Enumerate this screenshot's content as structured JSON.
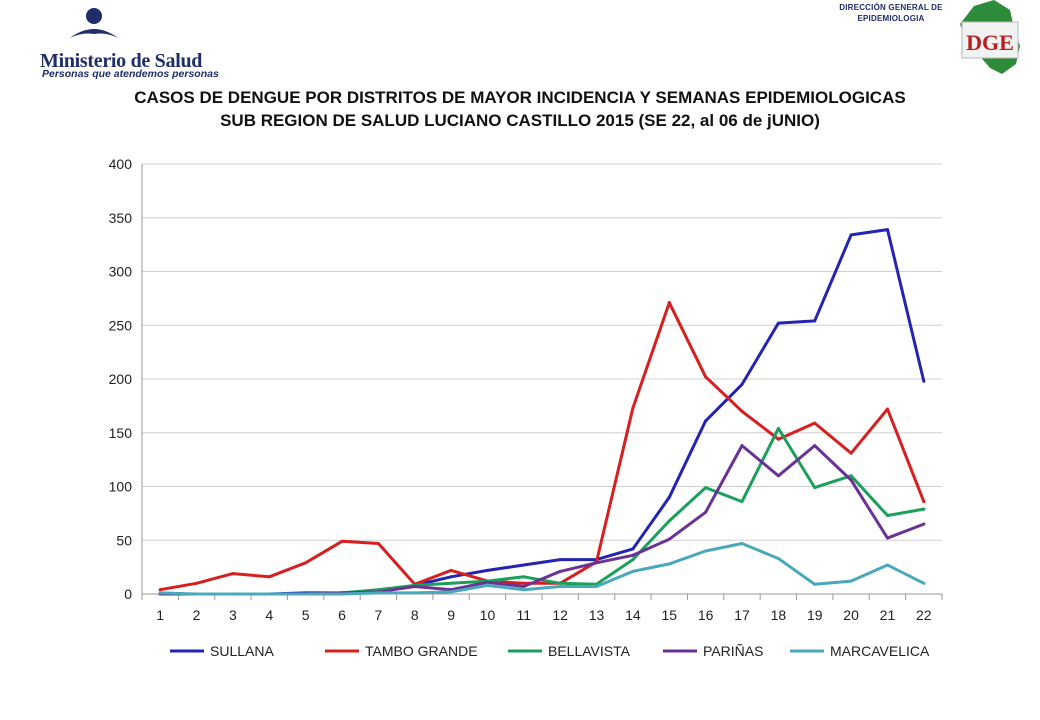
{
  "header": {
    "ministry_name": "Ministerio de Salud",
    "ministry_tagline": "Personas que atendemos personas",
    "dge_line1": "DIRECCIÓN GENERAL DE",
    "dge_line2": "EPIDEMIOLOGIA",
    "dge_logo_letters": "DGE"
  },
  "title_line1": "CASOS DE DENGUE POR DISTRITOS DE MAYOR INCIDENCIA Y SEMANAS EPIDEMIOLOGICAS",
  "title_line2": "SUB REGION DE SALUD LUCIANO CASTILLO 2015 (SE 22, al 06 de jUNIO)",
  "chart_data": {
    "type": "line",
    "x": [
      1,
      2,
      3,
      4,
      5,
      6,
      7,
      8,
      9,
      10,
      11,
      12,
      13,
      14,
      15,
      16,
      17,
      18,
      19,
      20,
      21,
      22
    ],
    "ylim": [
      0,
      400
    ],
    "yticks": [
      0,
      50,
      100,
      150,
      200,
      250,
      300,
      350,
      400
    ],
    "grid": true,
    "legend_position": "bottom",
    "series": [
      {
        "name": "SULLANA",
        "color": "#2424b4",
        "values": [
          0,
          0,
          0,
          0,
          1,
          1,
          2,
          8,
          16,
          22,
          27,
          32,
          32,
          42,
          90,
          161,
          195,
          252,
          254,
          334,
          339,
          198
        ]
      },
      {
        "name": "TAMBO GRANDE",
        "color": "#d81e1e",
        "values": [
          4,
          10,
          19,
          16,
          29,
          49,
          47,
          9,
          22,
          12,
          10,
          10,
          30,
          173,
          271,
          202,
          170,
          144,
          159,
          131,
          172,
          86
        ]
      },
      {
        "name": "BELLAVISTA",
        "color": "#1aa05a",
        "values": [
          0,
          0,
          0,
          0,
          0,
          1,
          4,
          8,
          10,
          12,
          16,
          10,
          9,
          32,
          68,
          99,
          86,
          154,
          99,
          110,
          73,
          79
        ]
      },
      {
        "name": "PARIÑAS",
        "color": "#6b3296",
        "values": [
          0,
          0,
          0,
          0,
          0,
          1,
          2,
          7,
          4,
          11,
          7,
          21,
          29,
          36,
          51,
          76,
          138,
          110,
          138,
          106,
          52,
          65
        ]
      },
      {
        "name": "MARCAVELICA",
        "color": "#4aa8bc",
        "values": [
          1,
          0,
          0,
          0,
          0,
          0,
          1,
          1,
          2,
          8,
          4,
          7,
          7,
          21,
          28,
          40,
          47,
          33,
          9,
          12,
          27,
          10
        ]
      }
    ]
  }
}
